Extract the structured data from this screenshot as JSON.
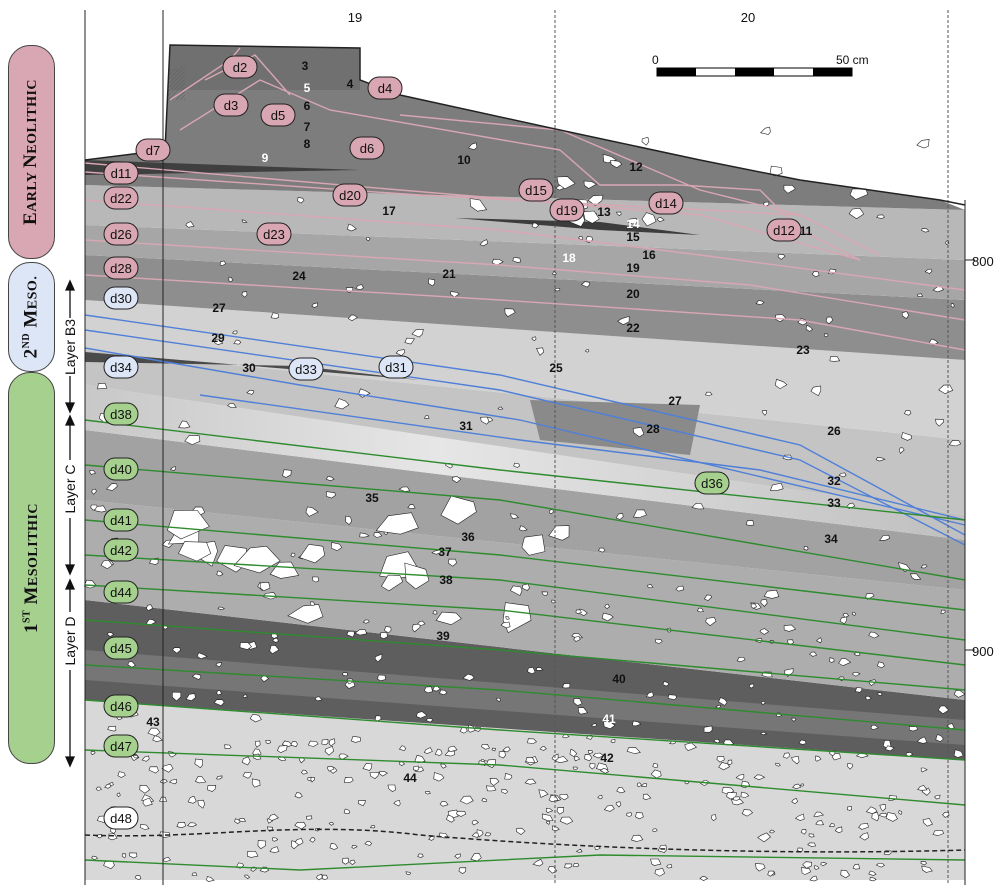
{
  "grid": {
    "x_labels": [
      "19",
      "20"
    ],
    "y_labels": [
      "800",
      "900"
    ]
  },
  "scale_bar": {
    "start": "0",
    "end": "50 cm"
  },
  "phases": {
    "early_neolithic": {
      "big1": "E",
      "rest1": "ARLY ",
      "big2": "N",
      "rest2": "EOLITHIC",
      "color": "#d9a6b3"
    },
    "second_meso": {
      "big": "2",
      "sup": "ND",
      "big2": "M",
      "rest": "ESO.",
      "color": "#dde6f7"
    },
    "first_mesolithic": {
      "big": "1",
      "sup": "ST",
      "big2": "M",
      "rest": "ESOLITHIC",
      "color": "#a6d08e"
    }
  },
  "layer_tags": {
    "b3": "Layer B3",
    "c": "Layer C",
    "d": "Layer D"
  },
  "samples": {
    "pink": [
      "d2",
      "d3",
      "d4",
      "d5",
      "d6",
      "d7",
      "d11",
      "d12",
      "d14",
      "d15",
      "d19",
      "d20",
      "d22",
      "d23",
      "d26",
      "d28"
    ],
    "blue": [
      "d30",
      "d31",
      "d33",
      "d34"
    ],
    "green": [
      "d36",
      "d38",
      "d40",
      "d41",
      "d42",
      "d44",
      "d45",
      "d46",
      "d47"
    ],
    "white": [
      "d48"
    ]
  },
  "units": [
    "3",
    "4",
    "5",
    "6",
    "7",
    "8",
    "9",
    "10",
    "11",
    "12",
    "13",
    "14",
    "15",
    "16",
    "17",
    "18",
    "19",
    "20",
    "21",
    "22",
    "23",
    "24",
    "25",
    "26",
    "27",
    "27",
    "28",
    "29",
    "30",
    "31",
    "32",
    "33",
    "34",
    "35",
    "36",
    "37",
    "38",
    "39",
    "40",
    "41",
    "42",
    "43",
    "44"
  ],
  "colors": {
    "pink_line": "#d9a6b3",
    "blue_line": "#4f7fd8",
    "green_line": "#2e8b2e"
  }
}
